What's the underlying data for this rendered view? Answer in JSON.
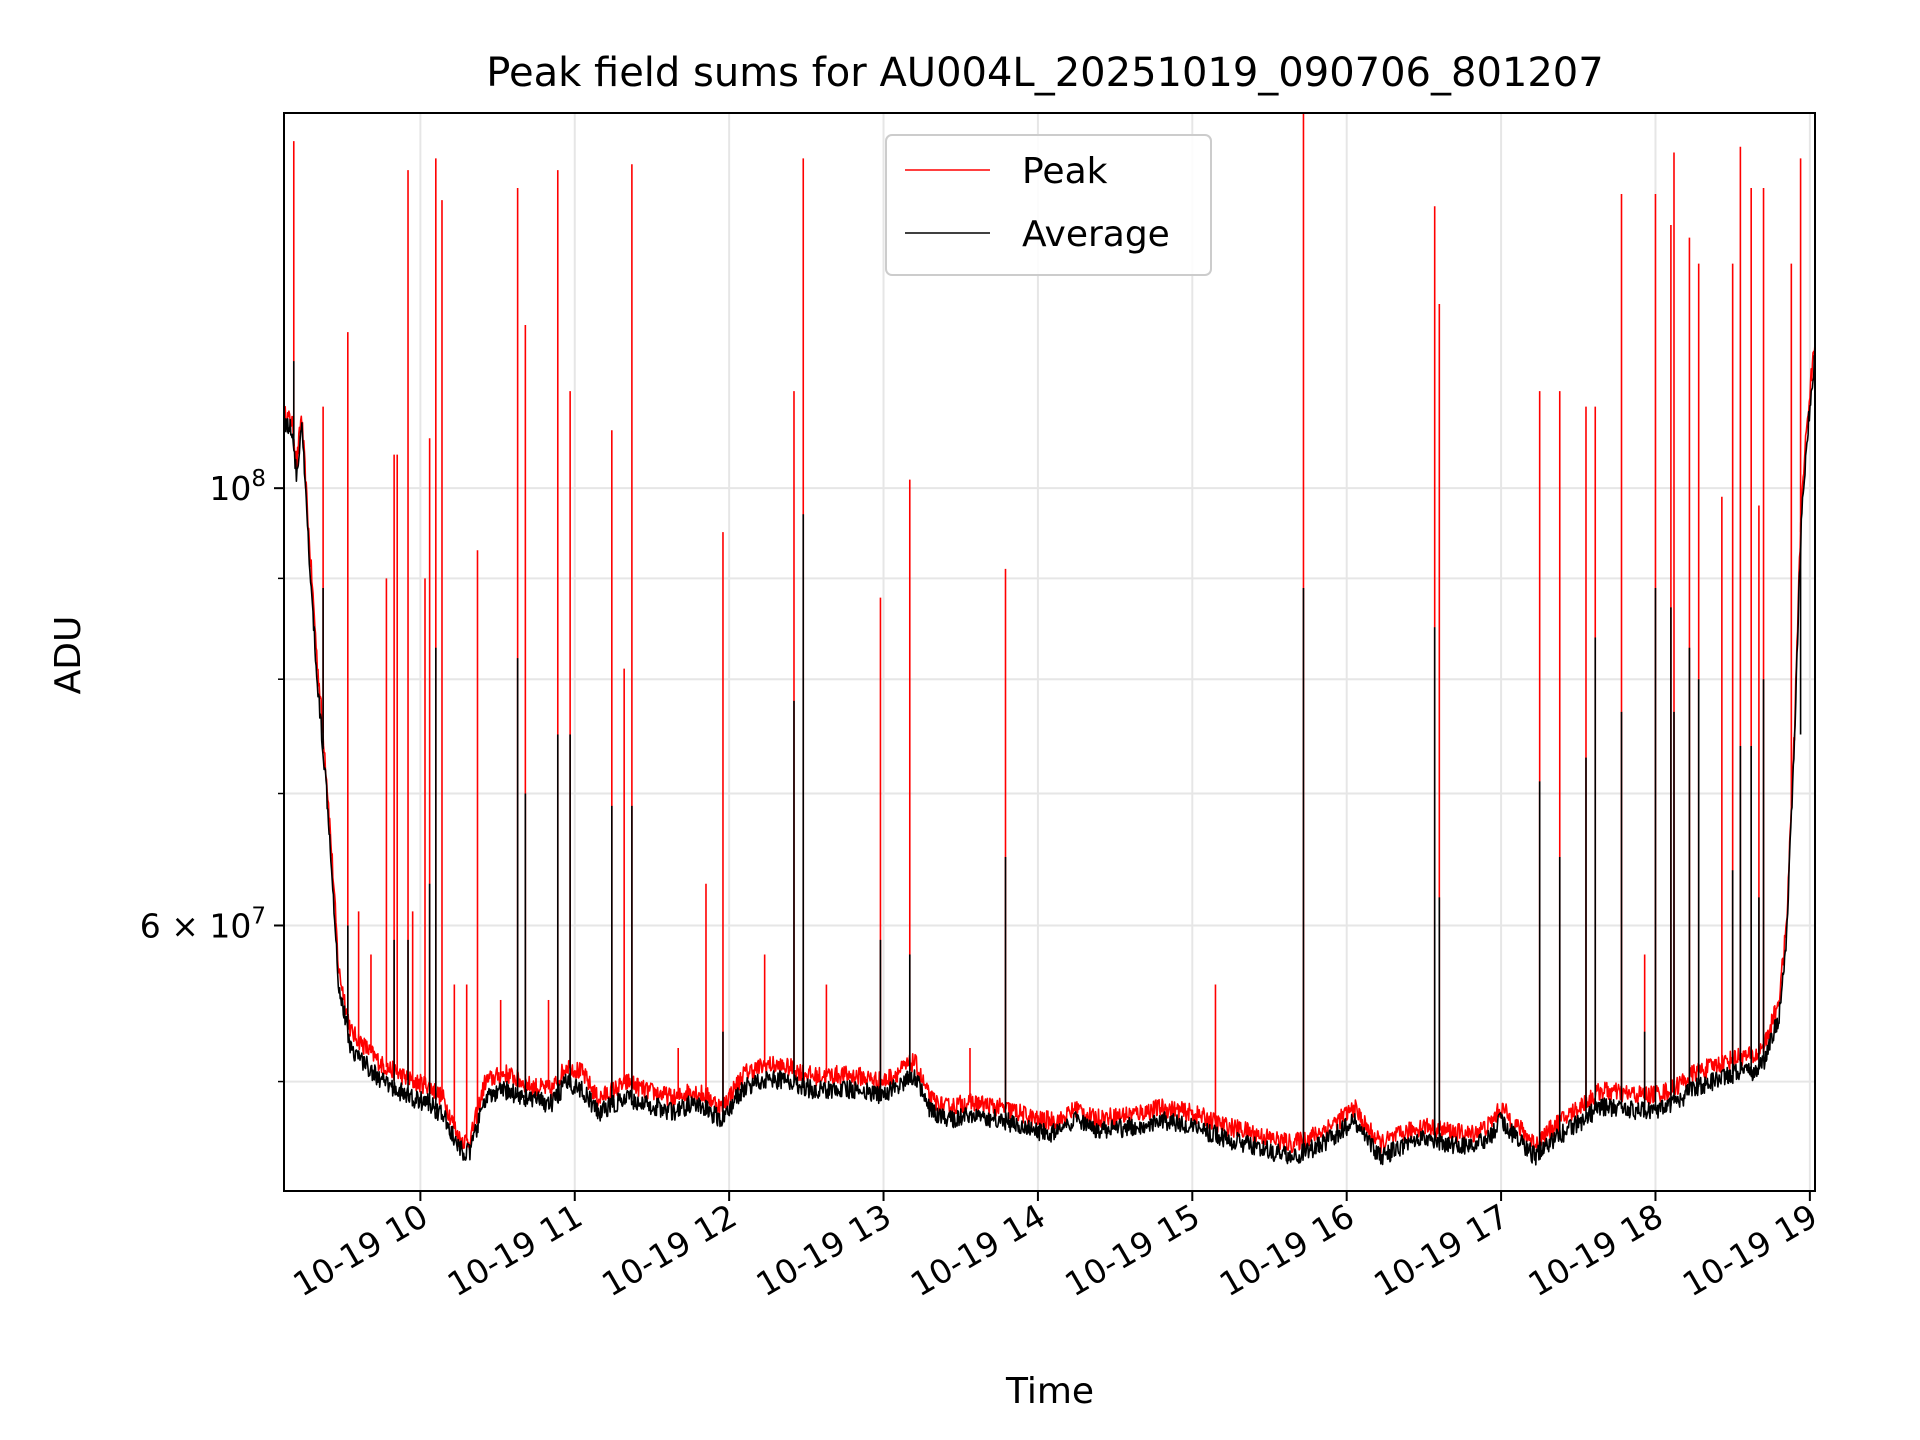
{
  "chart_data": {
    "type": "line",
    "title": "Peak field sums for AU004L_20251019_090706_801207",
    "xlabel": "Time",
    "ylabel": "ADU",
    "yscale": "log",
    "ylim": [
      44000000,
      155000000
    ],
    "xlim": [
      "2025-10-19 09:07",
      "2025-10-19 19:02"
    ],
    "grid": true,
    "legend_position": "top-center",
    "x_tick_labels": [
      "10-19 10",
      "10-19 11",
      "10-19 12",
      "10-19 13",
      "10-19 14",
      "10-19 15",
      "10-19 16",
      "10-19 17",
      "10-19 18",
      "10-19 19"
    ],
    "x_tick_hours": [
      10,
      11,
      12,
      13,
      14,
      15,
      16,
      17,
      18,
      19
    ],
    "y_major_ticks": [
      {
        "value": 100000000,
        "label": "10^8"
      },
      {
        "value": 60000000,
        "label": "6 × 10^7"
      }
    ],
    "y_minor_ticks": [
      50000000,
      70000000,
      80000000,
      90000000
    ],
    "series": [
      {
        "name": "Peak",
        "color": "#ff0000",
        "baseline_hours": [
          9.12,
          9.17,
          9.2,
          9.23,
          9.28,
          9.33,
          9.4,
          9.47,
          9.55,
          9.65,
          9.75,
          9.85,
          9.95,
          10.05,
          10.15,
          10.25,
          10.32,
          10.42,
          10.55,
          10.7,
          10.85,
          10.95,
          11.05,
          11.15,
          11.25,
          11.35,
          11.45,
          11.55,
          11.65,
          11.75,
          11.85,
          11.95,
          12.1,
          12.25,
          12.4,
          12.55,
          12.7,
          12.85,
          13.0,
          13.1,
          13.2,
          13.3,
          13.4,
          13.55,
          13.7,
          13.85,
          14.0,
          14.15,
          14.25,
          14.35,
          14.5,
          14.65,
          14.8,
          15.0,
          15.2,
          15.35,
          15.5,
          15.65,
          15.8,
          15.95,
          16.05,
          16.12,
          16.22,
          16.35,
          16.5,
          16.65,
          16.8,
          16.92,
          17.0,
          17.1,
          17.22,
          17.35,
          17.5,
          17.65,
          17.8,
          17.95,
          18.1,
          18.25,
          18.4,
          18.55,
          18.65,
          18.72,
          18.8,
          18.85,
          18.9,
          18.95,
          19.0,
          19.03
        ],
        "baseline_values": [
          109,
          108,
          103,
          109,
          94,
          82,
          70,
          57,
          53,
          52,
          51,
          50.5,
          50,
          49.8,
          49,
          46.8,
          46.6,
          50,
          50.5,
          49.8,
          49.5,
          51,
          50.5,
          49,
          49.5,
          50,
          49.5,
          49.3,
          49,
          49.5,
          49.2,
          48.5,
          50.5,
          51,
          50.8,
          50.3,
          50.4,
          50.3,
          50,
          50.6,
          51.2,
          49,
          48.5,
          48.8,
          48.6,
          48.3,
          47.8,
          47.8,
          48.5,
          47.9,
          48,
          48.2,
          48.5,
          48.2,
          47.5,
          47.2,
          46.8,
          46.5,
          47,
          47.8,
          48.5,
          47.5,
          46.5,
          47,
          47.5,
          47.2,
          47,
          47.5,
          48.5,
          47.5,
          46.5,
          47.5,
          48.5,
          49.5,
          49.3,
          49.2,
          49.5,
          50.5,
          51,
          51.5,
          51.5,
          52.5,
          55,
          60,
          75,
          100,
          112,
          118
        ],
        "spike_hours": [
          9.18,
          9.37,
          9.53,
          9.6,
          9.68,
          9.78,
          9.83,
          9.85,
          9.92,
          9.95,
          10.03,
          10.06,
          10.1,
          10.14,
          10.22,
          10.3,
          10.37,
          10.52,
          10.63,
          10.68,
          10.83,
          10.89,
          10.97,
          11.24,
          11.32,
          11.37,
          11.67,
          11.85,
          11.96,
          12.23,
          12.42,
          12.48,
          12.63,
          12.98,
          13.17,
          13.56,
          13.79,
          15.15,
          15.72,
          16.57,
          16.6,
          17.25,
          17.38,
          17.55,
          17.61,
          17.78,
          17.93,
          18.0,
          18.1,
          18.12,
          18.22,
          18.28,
          18.43,
          18.5,
          18.55,
          18.62,
          18.67,
          18.7,
          18.88,
          18.94
        ],
        "spike_values": [
          150,
          110,
          120,
          61,
          58,
          90,
          104,
          104,
          145,
          61,
          90,
          106,
          147,
          140,
          56,
          56,
          93,
          55,
          142,
          121,
          55,
          145,
          112,
          107,
          81,
          146,
          52,
          63,
          95,
          58,
          112,
          147,
          56,
          88,
          101,
          52,
          91,
          56,
          155,
          139,
          124,
          112,
          112,
          110,
          110,
          141,
          58,
          141,
          136,
          148,
          134,
          130,
          99,
          130,
          149,
          142,
          98,
          142,
          130,
          147
        ]
      },
      {
        "name": "Average",
        "color": "#000000",
        "baseline_hours": [
          9.12,
          9.17,
          9.2,
          9.23,
          9.28,
          9.33,
          9.4,
          9.47,
          9.55,
          9.65,
          9.75,
          9.85,
          9.95,
          10.05,
          10.15,
          10.25,
          10.32,
          10.42,
          10.55,
          10.7,
          10.85,
          10.95,
          11.05,
          11.15,
          11.25,
          11.35,
          11.45,
          11.55,
          11.65,
          11.75,
          11.85,
          11.95,
          12.1,
          12.25,
          12.4,
          12.55,
          12.7,
          12.85,
          13.0,
          13.1,
          13.2,
          13.3,
          13.4,
          13.55,
          13.7,
          13.85,
          14.0,
          14.15,
          14.25,
          14.35,
          14.5,
          14.65,
          14.8,
          15.0,
          15.2,
          15.35,
          15.5,
          15.65,
          15.8,
          15.95,
          16.05,
          16.12,
          16.22,
          16.35,
          16.5,
          16.65,
          16.8,
          16.92,
          17.0,
          17.1,
          17.22,
          17.35,
          17.5,
          17.65,
          17.8,
          17.95,
          18.1,
          18.25,
          18.4,
          18.55,
          18.65,
          18.72,
          18.8,
          18.85,
          18.9,
          18.95,
          19.0,
          19.03
        ],
        "baseline_values": [
          108,
          107,
          101,
          108,
          92,
          80,
          69,
          56,
          52,
          51,
          50,
          49.5,
          49,
          48.8,
          48,
          46.2,
          46,
          49,
          49.5,
          49,
          48.7,
          50,
          49.5,
          48.2,
          48.7,
          49,
          48.7,
          48.5,
          48.2,
          48.7,
          48.4,
          47.8,
          49.7,
          50.2,
          50,
          49.5,
          49.6,
          49.5,
          49.2,
          49.8,
          50.4,
          48.3,
          47.8,
          48.1,
          47.9,
          47.6,
          47.1,
          47.1,
          47.8,
          47.2,
          47.3,
          47.5,
          47.8,
          47.5,
          46.8,
          46.5,
          46.1,
          45.8,
          46.3,
          47.1,
          47.8,
          46.8,
          45.8,
          46.3,
          46.8,
          46.5,
          46.3,
          46.8,
          47.8,
          46.8,
          45.8,
          46.8,
          47.6,
          48.6,
          48.4,
          48.3,
          48.6,
          49.6,
          50.1,
          50.6,
          50.6,
          51.5,
          54,
          59,
          74,
          98,
          110,
          116
        ],
        "spike_hours": [
          9.18,
          9.37,
          9.53,
          9.83,
          9.92,
          10.06,
          10.1,
          10.63,
          10.68,
          10.89,
          10.97,
          11.24,
          11.37,
          11.96,
          12.42,
          12.48,
          12.98,
          13.17,
          13.79,
          15.72,
          16.57,
          16.6,
          17.25,
          17.38,
          17.55,
          17.61,
          17.78,
          17.93,
          18.0,
          18.1,
          18.12,
          18.22,
          18.28,
          18.5,
          18.55,
          18.62,
          18.67,
          18.7,
          18.94
        ],
        "spike_values": [
          116,
          89,
          60,
          59,
          59,
          63,
          83,
          82,
          70,
          75,
          75,
          69,
          69,
          53,
          78,
          97,
          59,
          58,
          65,
          89,
          85,
          62,
          71,
          65,
          73,
          84,
          77,
          53,
          89,
          87,
          77,
          83,
          80,
          64,
          74,
          74,
          62,
          80,
          75
        ]
      }
    ]
  }
}
